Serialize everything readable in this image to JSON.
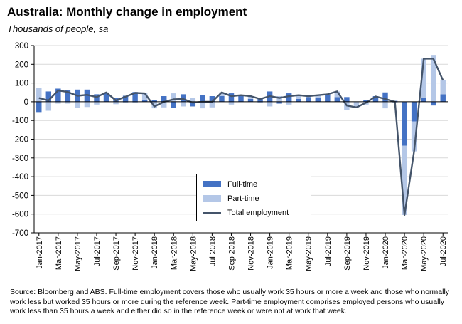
{
  "title": "Australia: Monthly change in employment",
  "subtitle": "Thousands of people, sa",
  "source_note": "Source: Bloomberg and ABS.  Full-time employment covers those who usually work 35 hours or more a week and those who normally work less but worked 35 hours or  more during the reference week.  Part-time employment comprises employed persons who usually work less than 35 hours a week and either did so in the reference week or were not at work that week.",
  "colors": {
    "full_time": "#4472C4",
    "part_time": "#B4C7E7",
    "total": "#44546A",
    "grid": "#D9D9D9"
  },
  "chart_data": {
    "type": "bar",
    "stacked": true,
    "ylim": [
      -700,
      300
    ],
    "yticks": [
      300,
      200,
      100,
      0,
      -100,
      -200,
      -300,
      -400,
      -500,
      -600,
      -700
    ],
    "categories": [
      "Jan-2017",
      "Feb-2017",
      "Mar-2017",
      "Apr-2017",
      "May-2017",
      "Jun-2017",
      "Jul-2017",
      "Aug-2017",
      "Sep-2017",
      "Oct-2017",
      "Nov-2017",
      "Dec-2017",
      "Jan-2018",
      "Feb-2018",
      "Mar-2018",
      "Apr-2018",
      "May-2018",
      "Jun-2018",
      "Jul-2018",
      "Aug-2018",
      "Sep-2018",
      "Oct-2018",
      "Nov-2018",
      "Dec-2018",
      "Jan-2019",
      "Feb-2019",
      "Mar-2019",
      "Apr-2019",
      "May-2019",
      "Jun-2019",
      "Jul-2019",
      "Aug-2019",
      "Sep-2019",
      "Oct-2019",
      "Nov-2019",
      "Dec-2019",
      "Jan-2020",
      "Feb-2020",
      "Mar-2020",
      "Apr-2020",
      "May-2020",
      "Jun-2020",
      "Jul-2020"
    ],
    "tick_labels": [
      "Jan-2017",
      "Mar-2017",
      "May-2017",
      "Jul-2017",
      "Sep-2017",
      "Nov-2017",
      "Jan-2018",
      "Mar-2018",
      "May-2018",
      "Jul-2018",
      "Sep-2018",
      "Nov-2018",
      "Jan-2019",
      "Mar-2019",
      "May-2019",
      "Jul-2019",
      "Sep-2019",
      "Nov-2019",
      "Jan-2020",
      "Mar-2020",
      "May-2020",
      "Jul-2020"
    ],
    "series": [
      {
        "name": "Full-time",
        "kind": "bar",
        "values": [
          -55,
          55,
          70,
          62,
          65,
          65,
          40,
          45,
          20,
          32,
          52,
          10,
          10,
          30,
          -32,
          40,
          -25,
          35,
          30,
          30,
          45,
          30,
          15,
          20,
          55,
          -10,
          45,
          15,
          25,
          20,
          35,
          25,
          25,
          0,
          10,
          30,
          50,
          5,
          -235,
          -105,
          20,
          -20,
          40
        ]
      },
      {
        "name": "Part-time",
        "kind": "bar",
        "values": [
          75,
          -48,
          -10,
          -10,
          -33,
          -28,
          -15,
          5,
          -13,
          -5,
          -5,
          35,
          -35,
          -30,
          45,
          -25,
          20,
          -35,
          -30,
          20,
          -15,
          5,
          15,
          -5,
          -25,
          30,
          -15,
          20,
          5,
          15,
          5,
          30,
          -45,
          -30,
          -15,
          -2,
          -35,
          -5,
          -370,
          -160,
          210,
          250,
          75
        ]
      },
      {
        "name": "Total employment",
        "kind": "line",
        "values": [
          20,
          7,
          60,
          52,
          32,
          37,
          25,
          50,
          7,
          27,
          47,
          45,
          -25,
          0,
          13,
          15,
          -5,
          0,
          0,
          50,
          30,
          35,
          30,
          15,
          30,
          20,
          30,
          35,
          30,
          35,
          40,
          55,
          -20,
          -30,
          -5,
          28,
          15,
          0,
          -605,
          -265,
          230,
          230,
          115
        ]
      }
    ]
  }
}
